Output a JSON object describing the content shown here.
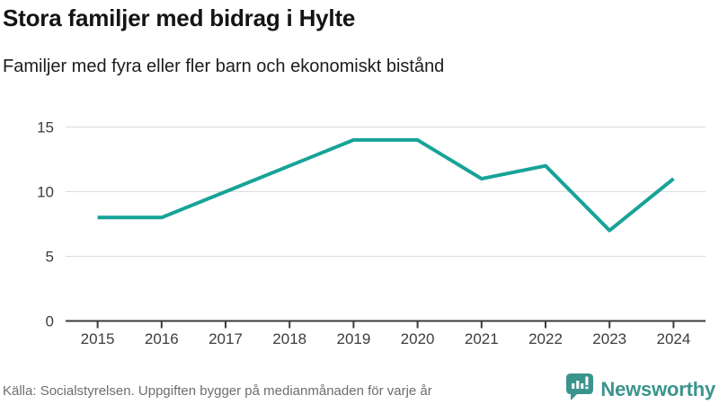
{
  "header": {
    "title": "Stora familjer med bidrag i Hylte",
    "subtitle": "Familjer med fyra eller fler barn och ekonomiskt bistånd"
  },
  "chart_data": {
    "type": "line",
    "categories": [
      "2015",
      "2016",
      "2017",
      "2018",
      "2019",
      "2020",
      "2021",
      "2022",
      "2023",
      "2024"
    ],
    "values": [
      8,
      8,
      10,
      12,
      14,
      14,
      11,
      12,
      7,
      11
    ],
    "series_name": "Familjer med fyra eller fler barn och ekonomiskt bistånd",
    "title": "Stora familjer med bidrag i Hylte",
    "xlabel": "",
    "ylabel": "",
    "ylim": [
      0,
      15
    ],
    "yticks": [
      0,
      5,
      10,
      15
    ],
    "grid": true,
    "legend": "none"
  },
  "colors": {
    "line": "#17A398",
    "grid": "#DCDCDC",
    "axis": "#3A3A3A",
    "tick_text": "#3D3D3D",
    "brand": "#3B948C"
  },
  "footer": {
    "source": "Källa: Socialstyrelsen. Uppgiften bygger på medianmånaden för varje år",
    "brand_name": "Newsworthy",
    "brand_icon": "bar-chart-speech-bubble-icon"
  }
}
